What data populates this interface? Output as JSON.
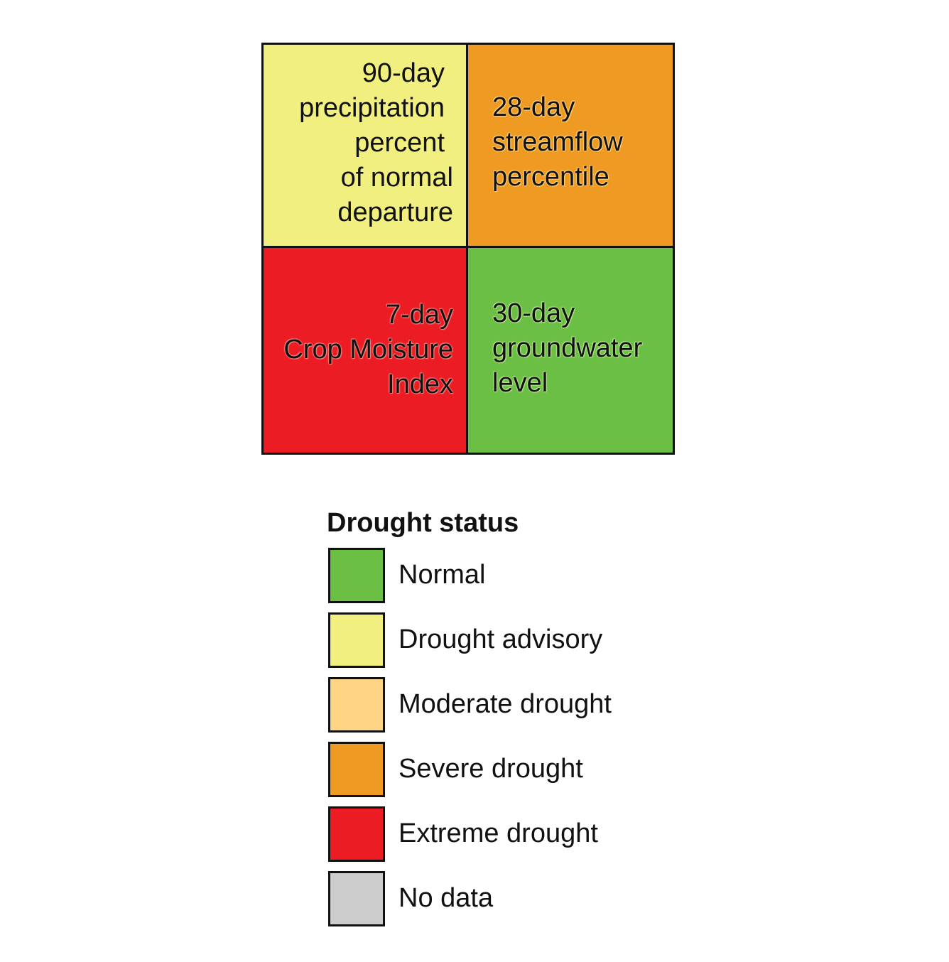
{
  "colors": {
    "normal": "#6cbf45",
    "drought_advisory": "#f0ef80",
    "moderate_drought": "#fdd585",
    "severe_drought": "#ee9a23",
    "extreme_drought": "#ec1c24",
    "no_data": "#cccccc"
  },
  "grid": {
    "top_left": {
      "lines": [
        "90-day",
        "precipitation",
        "percent",
        "of normal",
        "departure"
      ],
      "status": "Drought advisory",
      "color": "#f0ef80"
    },
    "top_right": {
      "lines": [
        "28-day",
        "streamflow",
        "percentile"
      ],
      "status": "Severe drought",
      "color": "#ee9a23"
    },
    "bottom_left": {
      "lines": [
        "7-day",
        "Crop Moisture",
        "Index"
      ],
      "status": "Extreme drought",
      "color": "#ec1c24"
    },
    "bottom_right": {
      "lines": [
        "30-day",
        "groundwater",
        "level"
      ],
      "status": "Normal",
      "color": "#6cbf45"
    }
  },
  "legend": {
    "title": "Drought status",
    "items": [
      {
        "label": "Normal",
        "color": "#6cbf45"
      },
      {
        "label": "Drought advisory",
        "color": "#f0ef80"
      },
      {
        "label": "Moderate drought",
        "color": "#fdd585"
      },
      {
        "label": "Severe drought",
        "color": "#ee9a23"
      },
      {
        "label": "Extreme drought",
        "color": "#ec1c24"
      },
      {
        "label": "No data",
        "color": "#cccccc"
      }
    ]
  }
}
